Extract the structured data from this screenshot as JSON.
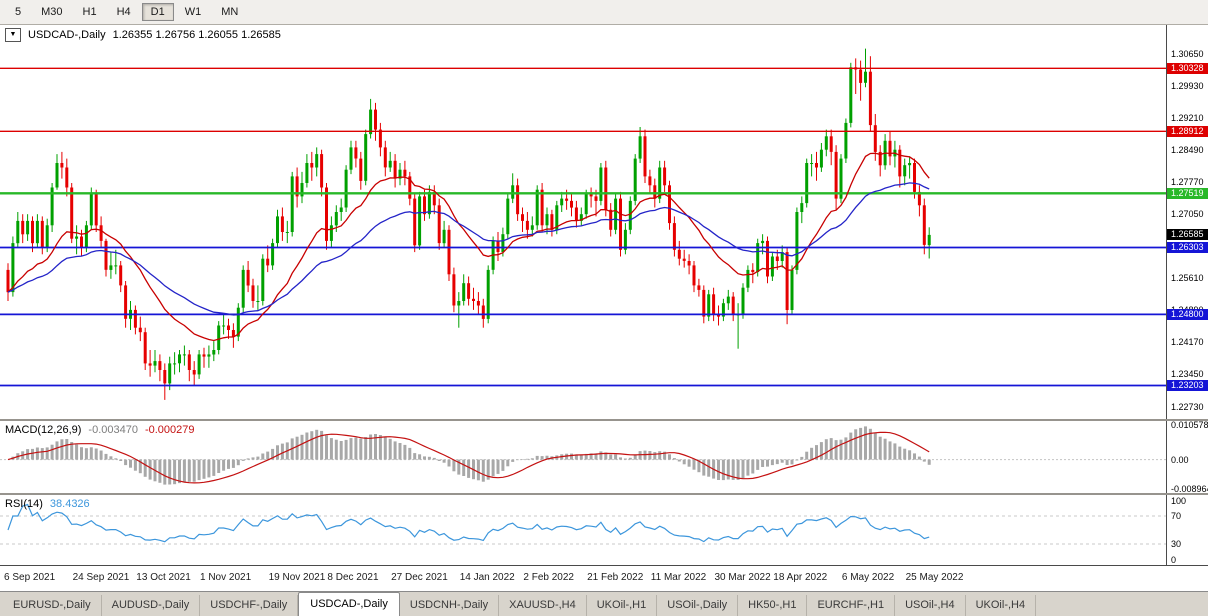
{
  "toolbar": {
    "buttons": [
      "5",
      "M30",
      "H1",
      "H4",
      "D1",
      "W1",
      "MN"
    ],
    "active": "D1"
  },
  "chart": {
    "title": {
      "dropdown_glyph": "▼",
      "symbol_period": "USDCAD-,Daily",
      "ohlc": "1.26355 1.26756 1.26055 1.26585"
    }
  },
  "chart_data": {
    "type": "candlestick",
    "symbol": "USDCAD",
    "period": "Daily",
    "colors": {
      "up": "#00a000",
      "down": "#e60000"
    },
    "ma_fast": {
      "period": 20,
      "color": "#c80000"
    },
    "ma_slow": {
      "period": 45,
      "color": "#2424c8"
    },
    "price_axis": {
      "render_min": 1.2245,
      "render_max": 1.313,
      "ticks": [
        1.3065,
        1.2993,
        1.2921,
        1.2849,
        1.2777,
        1.2705,
        1.2633,
        1.2561,
        1.2489,
        1.2417,
        1.2345,
        1.2273
      ]
    },
    "h_lines": [
      {
        "price": 1.30328,
        "label": "1.30328",
        "color": "#dd0000",
        "width": 1.4
      },
      {
        "price": 1.28912,
        "label": "1.28912",
        "color": "#dd0000",
        "width": 1.4
      },
      {
        "price": 1.27519,
        "label": "1.27519",
        "color": "#28b828",
        "width": 2.4
      },
      {
        "price": 1.26303,
        "label": "1.26303",
        "color": "#1515d6",
        "width": 1.8
      },
      {
        "price": 1.248,
        "label": "1.24800",
        "color": "#1515d6",
        "width": 1.8
      },
      {
        "price": 1.23203,
        "label": "1.23203",
        "color": "#1515d6",
        "width": 1.8
      }
    ],
    "current_price": {
      "value": 1.26585,
      "label": "1.26585",
      "bg": "#000000"
    },
    "x_axis": {
      "indices": [
        0,
        14,
        27,
        40,
        54,
        66,
        79,
        93,
        106,
        119,
        132,
        145,
        157,
        171,
        184
      ],
      "labels": [
        "6 Sep 2021",
        "24 Sep 2021",
        "13 Oct 2021",
        "1 Nov 2021",
        "19 Nov 2021",
        "8 Dec 2021",
        "27 Dec 2021",
        "14 Jan 2022",
        "2 Feb 2022",
        "21 Feb 2022",
        "11 Mar 2022",
        "30 Mar 2022",
        "18 Apr 2022",
        "6 May 2022",
        "25 May 2022"
      ]
    },
    "candles_ohlc": [
      [
        1.258,
        1.2595,
        1.251,
        1.253
      ],
      [
        1.253,
        1.2655,
        1.252,
        1.264
      ],
      [
        1.264,
        1.271,
        1.263,
        1.269
      ],
      [
        1.269,
        1.2705,
        1.264,
        1.266
      ],
      [
        1.266,
        1.2705,
        1.2645,
        1.269
      ],
      [
        1.269,
        1.27,
        1.262,
        1.264
      ],
      [
        1.264,
        1.2705,
        1.263,
        1.269
      ],
      [
        1.269,
        1.27,
        1.2615,
        1.263
      ],
      [
        1.263,
        1.2695,
        1.262,
        1.268
      ],
      [
        1.268,
        1.2775,
        1.2665,
        1.2765
      ],
      [
        1.2765,
        1.284,
        1.276,
        1.282
      ],
      [
        1.282,
        1.2845,
        1.2785,
        1.281
      ],
      [
        1.281,
        1.283,
        1.2745,
        1.2765
      ],
      [
        1.2765,
        1.2775,
        1.264,
        1.265
      ],
      [
        1.265,
        1.268,
        1.2615,
        1.2655
      ],
      [
        1.2655,
        1.267,
        1.261,
        1.263
      ],
      [
        1.263,
        1.269,
        1.262,
        1.268
      ],
      [
        1.268,
        1.2765,
        1.267,
        1.275
      ],
      [
        1.275,
        1.276,
        1.2665,
        1.268
      ],
      [
        1.268,
        1.27,
        1.263,
        1.2645
      ],
      [
        1.2645,
        1.265,
        1.2565,
        1.258
      ],
      [
        1.258,
        1.262,
        1.256,
        1.259
      ],
      [
        1.259,
        1.2625,
        1.257,
        1.259
      ],
      [
        1.259,
        1.26,
        1.253,
        1.2545
      ],
      [
        1.2545,
        1.2555,
        1.245,
        1.247
      ],
      [
        1.247,
        1.251,
        1.2445,
        1.249
      ],
      [
        1.249,
        1.25,
        1.2435,
        1.245
      ],
      [
        1.245,
        1.2475,
        1.242,
        1.244
      ],
      [
        1.244,
        1.245,
        1.2355,
        1.237
      ],
      [
        1.237,
        1.24,
        1.234,
        1.2365
      ],
      [
        1.2365,
        1.24,
        1.235,
        1.2375
      ],
      [
        1.2375,
        1.239,
        1.233,
        1.2355
      ],
      [
        1.2355,
        1.237,
        1.2288,
        1.2325
      ],
      [
        1.2325,
        1.2385,
        1.231,
        1.237
      ],
      [
        1.237,
        1.2395,
        1.2345,
        1.237
      ],
      [
        1.237,
        1.24,
        1.235,
        1.239
      ],
      [
        1.239,
        1.241,
        1.2365,
        1.239
      ],
      [
        1.239,
        1.24,
        1.233,
        1.2355
      ],
      [
        1.2355,
        1.2375,
        1.232,
        1.2345
      ],
      [
        1.2345,
        1.24,
        1.2335,
        1.239
      ],
      [
        1.239,
        1.2405,
        1.236,
        1.2385
      ],
      [
        1.2385,
        1.241,
        1.236,
        1.239
      ],
      [
        1.239,
        1.242,
        1.2375,
        1.24
      ],
      [
        1.24,
        1.2465,
        1.239,
        1.2455
      ],
      [
        1.2455,
        1.248,
        1.2435,
        1.2455
      ],
      [
        1.2455,
        1.247,
        1.2425,
        1.2445
      ],
      [
        1.2445,
        1.246,
        1.2405,
        1.243
      ],
      [
        1.243,
        1.2505,
        1.242,
        1.2495
      ],
      [
        1.2495,
        1.259,
        1.2485,
        1.258
      ],
      [
        1.258,
        1.26,
        1.253,
        1.2545
      ],
      [
        1.2545,
        1.256,
        1.2495,
        1.251
      ],
      [
        1.251,
        1.2545,
        1.249,
        1.251
      ],
      [
        1.251,
        1.2615,
        1.25,
        1.2605
      ],
      [
        1.2605,
        1.2635,
        1.2575,
        1.259
      ],
      [
        1.259,
        1.265,
        1.258,
        1.264
      ],
      [
        1.264,
        1.2715,
        1.263,
        1.27
      ],
      [
        1.27,
        1.272,
        1.2645,
        1.2665
      ],
      [
        1.2665,
        1.269,
        1.264,
        1.2665
      ],
      [
        1.2665,
        1.28,
        1.2655,
        1.279
      ],
      [
        1.279,
        1.281,
        1.272,
        1.2745
      ],
      [
        1.2745,
        1.28,
        1.273,
        1.2775
      ],
      [
        1.2775,
        1.284,
        1.2765,
        1.282
      ],
      [
        1.282,
        1.2845,
        1.278,
        1.281
      ],
      [
        1.281,
        1.2855,
        1.279,
        1.284
      ],
      [
        1.284,
        1.285,
        1.2745,
        1.2765
      ],
      [
        1.2765,
        1.2775,
        1.2625,
        1.2645
      ],
      [
        1.2645,
        1.27,
        1.263,
        1.268
      ],
      [
        1.268,
        1.2725,
        1.2665,
        1.271
      ],
      [
        1.271,
        1.274,
        1.269,
        1.272
      ],
      [
        1.272,
        1.2815,
        1.271,
        1.2805
      ],
      [
        1.2805,
        1.287,
        1.2795,
        1.2855
      ],
      [
        1.2855,
        1.287,
        1.281,
        1.283
      ],
      [
        1.283,
        1.2845,
        1.276,
        1.278
      ],
      [
        1.278,
        1.2895,
        1.277,
        1.2885
      ],
      [
        1.2885,
        1.2964,
        1.2875,
        1.294
      ],
      [
        1.294,
        1.2955,
        1.287,
        1.2895
      ],
      [
        1.2895,
        1.291,
        1.2835,
        1.2855
      ],
      [
        1.2855,
        1.287,
        1.279,
        1.281
      ],
      [
        1.281,
        1.2845,
        1.28,
        1.2825
      ],
      [
        1.2825,
        1.284,
        1.2765,
        1.2785
      ],
      [
        1.2785,
        1.282,
        1.277,
        1.2805
      ],
      [
        1.2805,
        1.2825,
        1.277,
        1.279
      ],
      [
        1.279,
        1.28,
        1.2725,
        1.274
      ],
      [
        1.274,
        1.275,
        1.262,
        1.2635
      ],
      [
        1.2635,
        1.2755,
        1.2625,
        1.2745
      ],
      [
        1.2745,
        1.276,
        1.269,
        1.2705
      ],
      [
        1.2705,
        1.277,
        1.2695,
        1.2755
      ],
      [
        1.2755,
        1.277,
        1.2705,
        1.2725
      ],
      [
        1.2725,
        1.274,
        1.2625,
        1.264
      ],
      [
        1.264,
        1.269,
        1.263,
        1.267
      ],
      [
        1.267,
        1.268,
        1.2555,
        1.257
      ],
      [
        1.257,
        1.2585,
        1.2485,
        1.25
      ],
      [
        1.25,
        1.253,
        1.245,
        1.251
      ],
      [
        1.251,
        1.257,
        1.25,
        1.255
      ],
      [
        1.255,
        1.2565,
        1.25,
        1.2515
      ],
      [
        1.2515,
        1.254,
        1.249,
        1.251
      ],
      [
        1.251,
        1.253,
        1.248,
        1.25
      ],
      [
        1.25,
        1.2515,
        1.245,
        1.247
      ],
      [
        1.247,
        1.259,
        1.246,
        1.258
      ],
      [
        1.258,
        1.2655,
        1.257,
        1.2645
      ],
      [
        1.2645,
        1.2665,
        1.26,
        1.262
      ],
      [
        1.262,
        1.2675,
        1.261,
        1.266
      ],
      [
        1.266,
        1.275,
        1.265,
        1.274
      ],
      [
        1.274,
        1.2797,
        1.273,
        1.277
      ],
      [
        1.277,
        1.2785,
        1.269,
        1.2705
      ],
      [
        1.2705,
        1.272,
        1.2665,
        1.269
      ],
      [
        1.269,
        1.271,
        1.265,
        1.267
      ],
      [
        1.267,
        1.27,
        1.2655,
        1.268
      ],
      [
        1.268,
        1.277,
        1.267,
        1.276
      ],
      [
        1.276,
        1.2775,
        1.2665,
        1.268
      ],
      [
        1.268,
        1.272,
        1.266,
        1.2705
      ],
      [
        1.2705,
        1.2715,
        1.2655,
        1.267
      ],
      [
        1.267,
        1.2735,
        1.266,
        1.2725
      ],
      [
        1.2725,
        1.2755,
        1.271,
        1.274
      ],
      [
        1.274,
        1.276,
        1.2715,
        1.2735
      ],
      [
        1.2735,
        1.275,
        1.27,
        1.272
      ],
      [
        1.272,
        1.2735,
        1.2675,
        1.269
      ],
      [
        1.269,
        1.272,
        1.268,
        1.2705
      ],
      [
        1.2705,
        1.276,
        1.2695,
        1.275
      ],
      [
        1.275,
        1.2765,
        1.272,
        1.2745
      ],
      [
        1.2745,
        1.276,
        1.27,
        1.2735
      ],
      [
        1.2735,
        1.282,
        1.2725,
        1.281
      ],
      [
        1.281,
        1.2825,
        1.27,
        1.2715
      ],
      [
        1.2715,
        1.273,
        1.2655,
        1.267
      ],
      [
        1.267,
        1.275,
        1.266,
        1.274
      ],
      [
        1.274,
        1.2755,
        1.261,
        1.2625
      ],
      [
        1.2625,
        1.2685,
        1.2615,
        1.267
      ],
      [
        1.267,
        1.2745,
        1.266,
        1.2735
      ],
      [
        1.2735,
        1.284,
        1.2725,
        1.283
      ],
      [
        1.283,
        1.2901,
        1.282,
        1.288
      ],
      [
        1.288,
        1.2895,
        1.2775,
        1.279
      ],
      [
        1.279,
        1.2805,
        1.275,
        1.277
      ],
      [
        1.277,
        1.2785,
        1.272,
        1.274
      ],
      [
        1.274,
        1.2825,
        1.273,
        1.281
      ],
      [
        1.281,
        1.2825,
        1.2755,
        1.277
      ],
      [
        1.277,
        1.278,
        1.267,
        1.2685
      ],
      [
        1.2685,
        1.27,
        1.261,
        1.2625
      ],
      [
        1.2625,
        1.2645,
        1.259,
        1.2605
      ],
      [
        1.2605,
        1.2625,
        1.2585,
        1.26
      ],
      [
        1.26,
        1.2615,
        1.257,
        1.259
      ],
      [
        1.259,
        1.26,
        1.253,
        1.2545
      ],
      [
        1.2545,
        1.256,
        1.252,
        1.2535
      ],
      [
        1.2535,
        1.2545,
        1.246,
        1.2475
      ],
      [
        1.2475,
        1.2535,
        1.2465,
        1.2525
      ],
      [
        1.2525,
        1.254,
        1.2465,
        1.248
      ],
      [
        1.248,
        1.25,
        1.2455,
        1.2475
      ],
      [
        1.2475,
        1.2515,
        1.2465,
        1.2505
      ],
      [
        1.2505,
        1.2535,
        1.249,
        1.252
      ],
      [
        1.252,
        1.253,
        1.2465,
        1.248
      ],
      [
        1.248,
        1.2505,
        1.2403,
        1.248
      ],
      [
        1.248,
        1.255,
        1.247,
        1.254
      ],
      [
        1.254,
        1.259,
        1.253,
        1.258
      ],
      [
        1.258,
        1.2595,
        1.255,
        1.2575
      ],
      [
        1.2575,
        1.265,
        1.2565,
        1.264
      ],
      [
        1.264,
        1.266,
        1.2615,
        1.2645
      ],
      [
        1.2645,
        1.2655,
        1.255,
        1.2565
      ],
      [
        1.2565,
        1.262,
        1.2555,
        1.261
      ],
      [
        1.261,
        1.2625,
        1.258,
        1.26
      ],
      [
        1.26,
        1.2635,
        1.2585,
        1.262
      ],
      [
        1.262,
        1.263,
        1.2458,
        1.249
      ],
      [
        1.249,
        1.259,
        1.248,
        1.258
      ],
      [
        1.258,
        1.272,
        1.257,
        1.271
      ],
      [
        1.271,
        1.2745,
        1.2685,
        1.273
      ],
      [
        1.273,
        1.283,
        1.272,
        1.282
      ],
      [
        1.282,
        1.284,
        1.279,
        1.282
      ],
      [
        1.282,
        1.2845,
        1.278,
        1.281
      ],
      [
        1.281,
        1.2865,
        1.28,
        1.285
      ],
      [
        1.285,
        1.2895,
        1.2835,
        1.288
      ],
      [
        1.288,
        1.2895,
        1.2815,
        1.2845
      ],
      [
        1.2845,
        1.286,
        1.2715,
        1.274
      ],
      [
        1.274,
        1.284,
        1.273,
        1.283
      ],
      [
        1.283,
        1.292,
        1.282,
        1.291
      ],
      [
        1.291,
        1.3045,
        1.29,
        1.3035
      ],
      [
        1.3035,
        1.3055,
        1.2975,
        1.303
      ],
      [
        1.303,
        1.305,
        1.296,
        1.3
      ],
      [
        1.3,
        1.3077,
        1.299,
        1.3025
      ],
      [
        1.3025,
        1.306,
        1.289,
        1.2905
      ],
      [
        1.2905,
        1.293,
        1.2825,
        1.2845
      ],
      [
        1.2845,
        1.286,
        1.279,
        1.2815
      ],
      [
        1.2815,
        1.2885,
        1.2805,
        1.287
      ],
      [
        1.287,
        1.289,
        1.2815,
        1.2835
      ],
      [
        1.2835,
        1.287,
        1.281,
        1.285
      ],
      [
        1.285,
        1.286,
        1.2765,
        1.279
      ],
      [
        1.279,
        1.283,
        1.277,
        1.2815
      ],
      [
        1.2815,
        1.2835,
        1.2785,
        1.282
      ],
      [
        1.282,
        1.283,
        1.274,
        1.2755
      ],
      [
        1.2755,
        1.277,
        1.27,
        1.2725
      ],
      [
        1.2725,
        1.274,
        1.2615,
        1.2636
      ],
      [
        1.26355,
        1.26756,
        1.26055,
        1.26585
      ]
    ]
  },
  "macd": {
    "label": "MACD(12,26,9)",
    "value_main": "-0.003470",
    "value_signal": "-0.000279",
    "hist_color": "#a8a8a8",
    "signal_color": "#c41111",
    "render_min": -0.0102,
    "render_max": 0.0118,
    "axis_ticks": [
      {
        "value": 0.010578,
        "label": "0.010578"
      },
      {
        "value": 0,
        "label": "0.00"
      },
      {
        "value": -0.008964,
        "label": "-0.008964"
      }
    ]
  },
  "rsi": {
    "label": "RSI(14)",
    "value": "38.4326",
    "line_color": "#3c96dc",
    "levels": [
      {
        "value": 100,
        "label": "100"
      },
      {
        "value": 70,
        "label": "70"
      },
      {
        "value": 30,
        "label": "30"
      },
      {
        "value": 0,
        "label": "0"
      }
    ]
  },
  "tabs": {
    "items": [
      "EURUSD-,Daily",
      "AUDUSD-,Daily",
      "USDCHF-,Daily",
      "USDCAD-,Daily",
      "USDCNH-,Daily",
      "XAUUSD-,H4",
      "UKOil-,H1",
      "USOil-,Daily",
      "HK50-,H1",
      "EURCHF-,H1",
      "USOil-,H4",
      "UKOil-,H4"
    ],
    "active_index": 3
  }
}
